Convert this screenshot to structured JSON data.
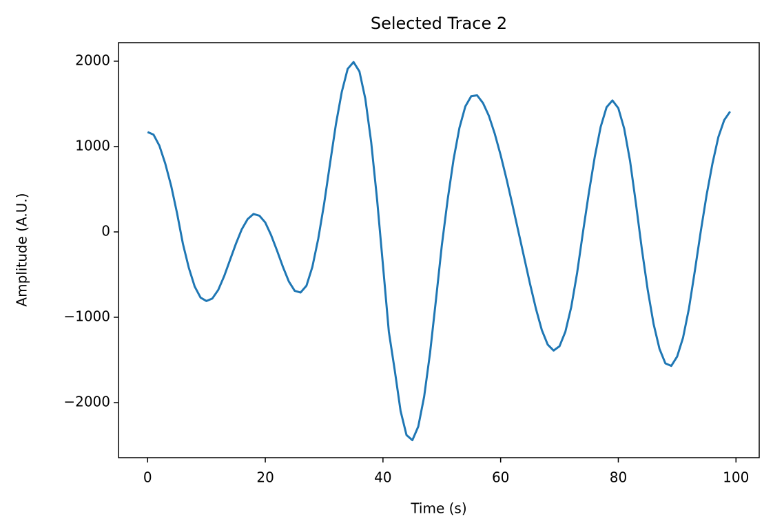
{
  "chart_data": {
    "type": "line",
    "title": "Selected Trace 2",
    "x_label": "Time (s)",
    "y_label": "Amplitude (A.U.)",
    "x": [
      0,
      1,
      2,
      3,
      4,
      5,
      6,
      7,
      8,
      9,
      10,
      11,
      12,
      13,
      14,
      15,
      16,
      17,
      18,
      19,
      20,
      21,
      22,
      23,
      24,
      25,
      26,
      27,
      28,
      29,
      30,
      31,
      32,
      33,
      34,
      35,
      36,
      37,
      38,
      39,
      40,
      41,
      42,
      43,
      44,
      45,
      46,
      47,
      48,
      49,
      50,
      51,
      52,
      53,
      54,
      55,
      56,
      57,
      58,
      59,
      60,
      61,
      62,
      63,
      64,
      65,
      66,
      67,
      68,
      69,
      70,
      71,
      72,
      73,
      74,
      75,
      76,
      77,
      78,
      79,
      80,
      81,
      82,
      83,
      84,
      85,
      86,
      87,
      88,
      89,
      90,
      91,
      92,
      93,
      94,
      95,
      96,
      97,
      98,
      99
    ],
    "series": [
      {
        "name": "Trace 2",
        "color": "#1f77b4",
        "values": [
          1170,
          1140,
          1010,
          800,
          540,
          220,
          -140,
          -420,
          -640,
          -770,
          -810,
          -780,
          -680,
          -520,
          -330,
          -140,
          30,
          150,
          210,
          190,
          110,
          -40,
          -220,
          -410,
          -580,
          -690,
          -710,
          -630,
          -410,
          -80,
          330,
          800,
          1260,
          1640,
          1910,
          1990,
          1880,
          1560,
          1050,
          380,
          -390,
          -1170,
          -1620,
          -2100,
          -2380,
          -2440,
          -2280,
          -1930,
          -1420,
          -800,
          -160,
          380,
          850,
          1220,
          1470,
          1590,
          1600,
          1510,
          1360,
          1150,
          900,
          620,
          320,
          10,
          -300,
          -610,
          -900,
          -1150,
          -1320,
          -1390,
          -1340,
          -1170,
          -880,
          -480,
          0,
          460,
          880,
          1230,
          1460,
          1540,
          1450,
          1210,
          830,
          330,
          -200,
          -680,
          -1080,
          -1370,
          -1540,
          -1570,
          -1460,
          -1240,
          -900,
          -460,
          0,
          430,
          800,
          1110,
          1310,
          1410
        ]
      }
    ],
    "xlim": [
      -4.95,
      103.95
    ],
    "ylim": [
      -2645,
      2217
    ],
    "xticks": [
      0,
      20,
      40,
      60,
      80,
      100
    ],
    "yticks": [
      {
        "value": -2000,
        "label": "−2000"
      },
      {
        "value": -1000,
        "label": "−1000"
      },
      0,
      1000,
      2000
    ]
  }
}
